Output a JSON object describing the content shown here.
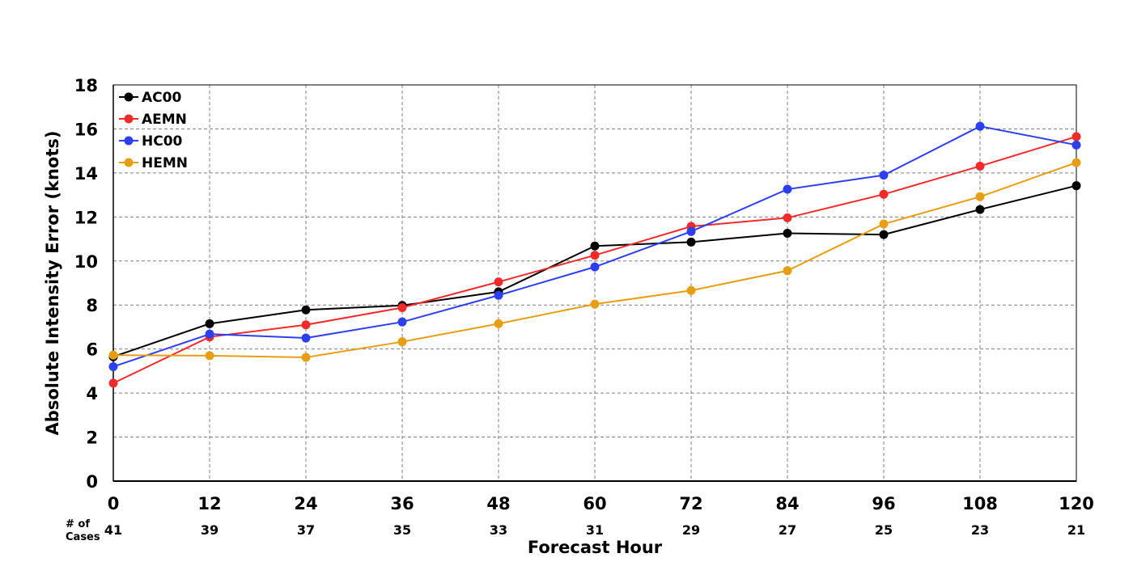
{
  "chart_data": {
    "type": "line",
    "title": "",
    "xlabel": "Forecast Hour",
    "ylabel": "Absolute Intensity Error (knots)",
    "x": [
      0,
      12,
      24,
      36,
      48,
      60,
      72,
      84,
      96,
      108,
      120
    ],
    "xlim": [
      0,
      120
    ],
    "ylim": [
      0,
      18
    ],
    "x_ticks": [
      "0",
      "12",
      "24",
      "36",
      "48",
      "60",
      "72",
      "84",
      "96",
      "108",
      "120"
    ],
    "y_ticks": [
      "0",
      "2",
      "4",
      "6",
      "8",
      "10",
      "12",
      "14",
      "16",
      "18"
    ],
    "grid": true,
    "legend_position": "top-left",
    "cases_title": [
      "# of",
      "Cases"
    ],
    "cases": [
      "41",
      "39",
      "37",
      "35",
      "33",
      "31",
      "29",
      "27",
      "25",
      "23",
      "21"
    ],
    "series": [
      {
        "name": "AC00",
        "color": "#000000",
        "values": [
          5.65,
          7.15,
          7.78,
          7.98,
          8.6,
          10.68,
          10.86,
          11.26,
          11.2,
          12.34,
          13.42
        ]
      },
      {
        "name": "AEMN",
        "color": "#f22a2a",
        "values": [
          4.45,
          6.55,
          7.1,
          7.88,
          9.05,
          10.26,
          11.57,
          11.96,
          13.03,
          14.31,
          15.65
        ]
      },
      {
        "name": "HC00",
        "color": "#2d3ff5",
        "values": [
          5.2,
          6.68,
          6.5,
          7.23,
          8.44,
          9.73,
          11.34,
          13.26,
          13.9,
          16.12,
          15.27
        ]
      },
      {
        "name": "HEMN",
        "color": "#e89e12",
        "values": [
          5.72,
          5.7,
          5.62,
          6.33,
          7.15,
          8.04,
          8.66,
          9.56,
          11.68,
          12.92,
          14.47
        ]
      }
    ]
  }
}
